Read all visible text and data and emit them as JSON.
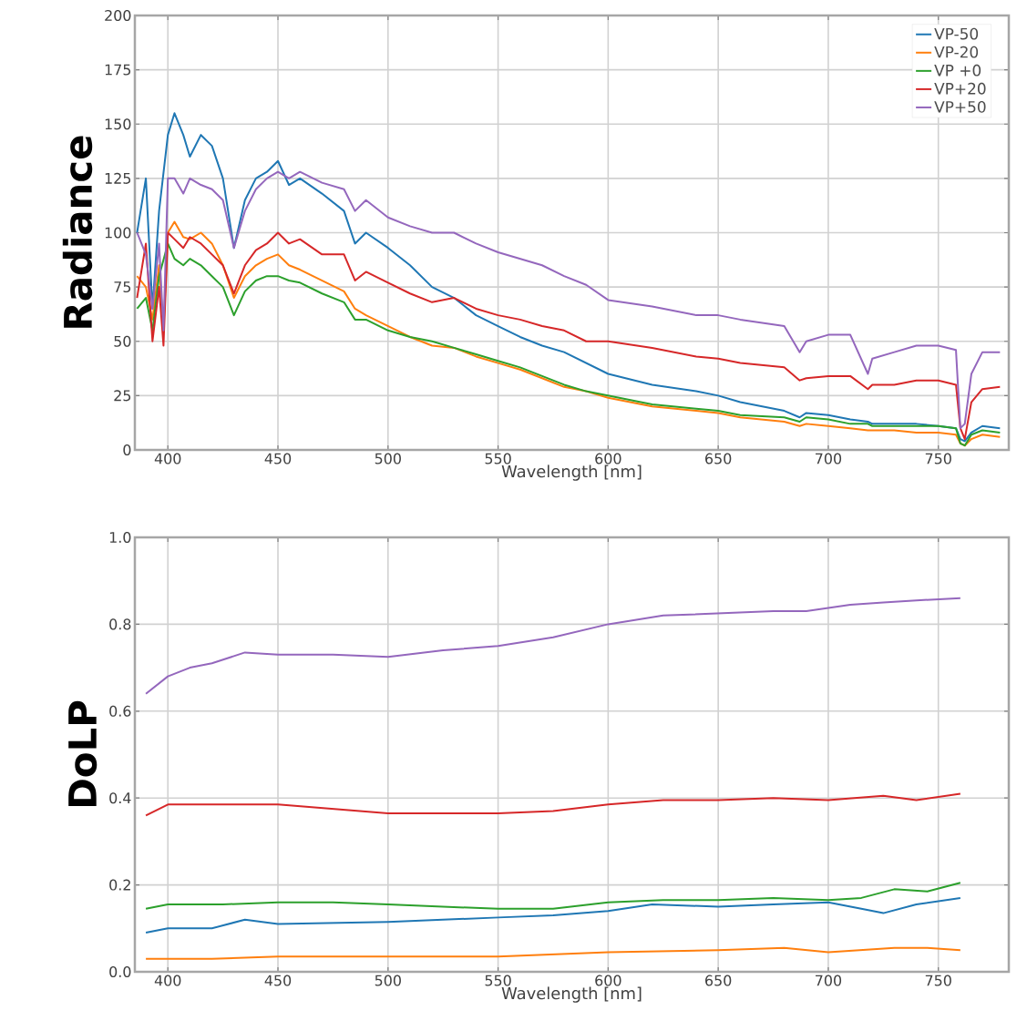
{
  "chart_data": [
    {
      "type": "line",
      "ylabel": "Radiance",
      "xlabel": "Wavelength [nm]",
      "xlim": [
        385,
        782
      ],
      "ylim": [
        0,
        200
      ],
      "xticks": [
        400,
        450,
        500,
        550,
        600,
        650,
        700,
        750
      ],
      "yticks": [
        0,
        25,
        50,
        75,
        100,
        125,
        150,
        175,
        200
      ],
      "grid": true,
      "legend": "top right",
      "x": [
        386,
        390,
        393,
        396,
        398,
        400,
        403,
        407,
        410,
        415,
        420,
        425,
        430,
        435,
        440,
        445,
        450,
        455,
        460,
        470,
        480,
        485,
        490,
        500,
        510,
        520,
        530,
        540,
        550,
        560,
        570,
        580,
        590,
        600,
        620,
        640,
        650,
        660,
        680,
        687,
        690,
        700,
        710,
        718,
        720,
        730,
        740,
        750,
        758,
        760,
        762,
        765,
        770,
        778
      ],
      "series": [
        {
          "name": "VP-50",
          "color": "#1f77b4",
          "values": [
            100,
            125,
            65,
            110,
            null,
            145,
            155,
            145,
            135,
            145,
            140,
            125,
            93,
            115,
            125,
            128,
            133,
            122,
            125,
            118,
            110,
            95,
            100,
            93,
            85,
            75,
            70,
            62,
            57,
            52,
            48,
            45,
            40,
            35,
            30,
            27,
            25,
            22,
            18,
            15,
            17,
            16,
            14,
            13,
            12,
            12,
            12,
            11,
            10,
            5,
            4,
            8,
            11,
            10
          ]
        },
        {
          "name": "VP-20",
          "color": "#ff7f0e",
          "values": [
            80,
            75,
            60,
            85,
            55,
            100,
            105,
            98,
            97,
            100,
            95,
            85,
            70,
            80,
            85,
            88,
            90,
            85,
            83,
            78,
            73,
            65,
            62,
            57,
            52,
            48,
            47,
            43,
            40,
            37,
            33,
            29,
            27,
            24,
            20,
            18,
            17,
            15,
            13,
            11,
            12,
            11,
            10,
            9,
            9,
            9,
            8,
            8,
            7,
            3,
            2,
            5,
            7,
            6
          ]
        },
        {
          "name": "VP +0",
          "color": "#2ca02c",
          "values": [
            65,
            70,
            55,
            80,
            null,
            95,
            88,
            85,
            88,
            85,
            80,
            75,
            62,
            73,
            78,
            80,
            80,
            78,
            77,
            72,
            68,
            60,
            60,
            55,
            52,
            50,
            47,
            44,
            41,
            38,
            34,
            30,
            27,
            25,
            21,
            19,
            18,
            16,
            15,
            13,
            15,
            14,
            12,
            12,
            11,
            11,
            11,
            11,
            10,
            3,
            2,
            7,
            9,
            8
          ]
        },
        {
          "name": "VP+20",
          "color": "#d62728",
          "values": [
            70,
            95,
            50,
            75,
            48,
            100,
            97,
            93,
            98,
            95,
            90,
            85,
            72,
            85,
            92,
            95,
            100,
            95,
            97,
            90,
            90,
            78,
            82,
            77,
            72,
            68,
            70,
            65,
            62,
            60,
            57,
            55,
            50,
            50,
            47,
            43,
            42,
            40,
            38,
            32,
            33,
            34,
            34,
            28,
            30,
            30,
            32,
            32,
            30,
            10,
            5,
            22,
            28,
            29
          ]
        },
        {
          "name": "VP+50",
          "color": "#9467bd",
          "values": [
            100,
            90,
            65,
            95,
            55,
            125,
            125,
            118,
            125,
            122,
            120,
            115,
            93,
            110,
            120,
            125,
            128,
            125,
            128,
            123,
            120,
            110,
            115,
            107,
            103,
            100,
            100,
            95,
            91,
            88,
            85,
            80,
            76,
            69,
            66,
            62,
            62,
            60,
            57,
            45,
            50,
            53,
            53,
            35,
            42,
            45,
            48,
            48,
            46,
            10,
            12,
            35,
            45,
            45
          ]
        }
      ]
    },
    {
      "type": "line",
      "ylabel": "DoLP",
      "xlabel": "Wavelength [nm]",
      "xlim": [
        385,
        782
      ],
      "ylim": [
        0,
        1
      ],
      "xticks": [
        400,
        450,
        500,
        550,
        600,
        650,
        700,
        750
      ],
      "yticks": [
        {
          "value": 0,
          "label": "0.0"
        },
        {
          "value": 0.2,
          "label": "0.2"
        },
        {
          "value": 0.4,
          "label": "0.4"
        },
        {
          "value": 0.6,
          "label": "0.6"
        },
        {
          "value": 0.8,
          "label": "0.8"
        },
        {
          "value": 1,
          "label": "1.0"
        }
      ],
      "grid": true,
      "series": [
        {
          "color": "#1f77b4",
          "x": [
            390,
            400,
            420,
            435,
            450,
            500,
            550,
            575,
            600,
            620,
            650,
            675,
            700,
            715,
            725,
            740,
            760
          ],
          "values": [
            0.09,
            0.1,
            0.1,
            0.12,
            0.11,
            0.115,
            0.125,
            0.13,
            0.14,
            0.155,
            0.15,
            0.155,
            0.16,
            0.145,
            0.135,
            0.155,
            0.17
          ]
        },
        {
          "color": "#ff7f0e",
          "x": [
            390,
            420,
            450,
            500,
            550,
            600,
            650,
            680,
            700,
            730,
            745,
            760
          ],
          "values": [
            0.03,
            0.03,
            0.035,
            0.035,
            0.035,
            0.045,
            0.05,
            0.055,
            0.045,
            0.055,
            0.055,
            0.05
          ]
        },
        {
          "color": "#2ca02c",
          "x": [
            390,
            400,
            425,
            450,
            475,
            500,
            550,
            575,
            600,
            625,
            650,
            675,
            700,
            715,
            730,
            745,
            760
          ],
          "values": [
            0.145,
            0.155,
            0.155,
            0.16,
            0.16,
            0.155,
            0.145,
            0.145,
            0.16,
            0.165,
            0.165,
            0.17,
            0.165,
            0.17,
            0.19,
            0.185,
            0.205
          ]
        },
        {
          "color": "#d62728",
          "x": [
            390,
            400,
            425,
            450,
            475,
            500,
            550,
            575,
            600,
            625,
            650,
            675,
            700,
            725,
            740,
            760
          ],
          "values": [
            0.36,
            0.385,
            0.385,
            0.385,
            0.375,
            0.365,
            0.365,
            0.37,
            0.385,
            0.395,
            0.395,
            0.4,
            0.395,
            0.405,
            0.395,
            0.41
          ]
        },
        {
          "color": "#9467bd",
          "x": [
            390,
            400,
            410,
            420,
            435,
            450,
            475,
            500,
            525,
            550,
            575,
            600,
            625,
            650,
            675,
            690,
            710,
            725,
            740,
            760
          ],
          "values": [
            0.64,
            0.68,
            0.7,
            0.71,
            0.735,
            0.73,
            0.73,
            0.725,
            0.74,
            0.75,
            0.77,
            0.8,
            0.82,
            0.825,
            0.83,
            0.83,
            0.845,
            0.85,
            0.855,
            0.86
          ]
        }
      ]
    }
  ]
}
